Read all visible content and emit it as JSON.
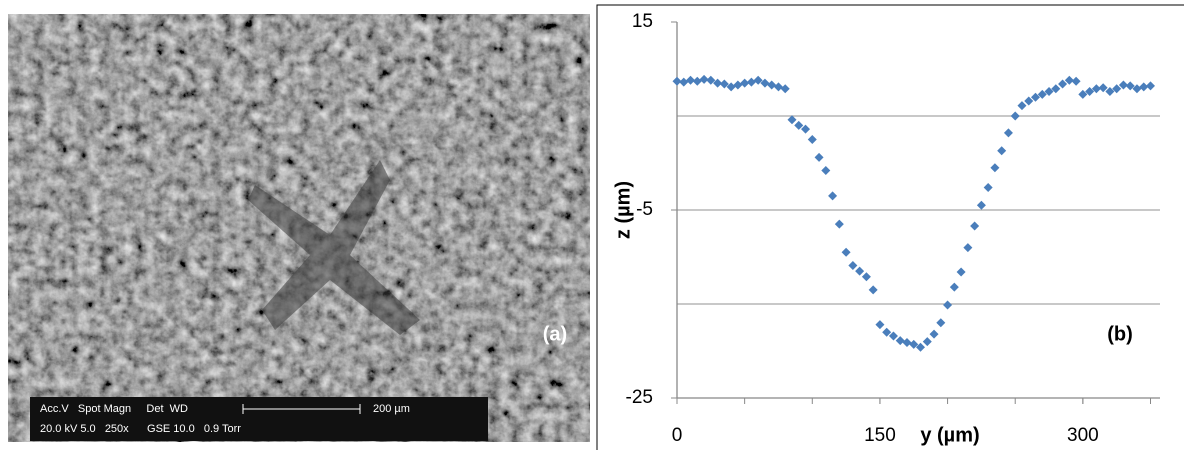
{
  "image": {
    "label": "(a)",
    "info_line1": "Acc.V   Spot Magn     Det  WD",
    "info_line2": "20.0 kV 5.0   250x      GSE 10.0   0.9 Torr",
    "scale_label": "200 µm"
  },
  "chart_data": {
    "type": "scatter",
    "label": "(b)",
    "x_label": "y (µm)",
    "y_label": "z (µm)",
    "xlim": [
      0,
      350
    ],
    "xticks": [
      0,
      150,
      300
    ],
    "xminor_step": 50,
    "ylim": [
      -25,
      15
    ],
    "yticks": [
      -25,
      -5,
      15
    ],
    "grid_lines": [
      -15,
      -5,
      5
    ],
    "color": "#4a7ebb",
    "x": [
      0,
      5,
      10,
      15,
      20,
      25,
      30,
      35,
      40,
      45,
      50,
      55,
      60,
      65,
      70,
      75,
      80,
      85,
      90,
      95,
      100,
      105,
      110,
      115,
      120,
      125,
      130,
      135,
      140,
      145,
      150,
      155,
      160,
      165,
      170,
      175,
      180,
      185,
      190,
      195,
      200,
      205,
      210,
      215,
      220,
      225,
      230,
      235,
      240,
      245,
      250,
      255,
      260,
      265,
      270,
      275,
      280,
      285,
      290,
      295,
      300,
      305,
      310,
      315,
      320,
      325,
      330,
      335,
      340,
      345,
      350
    ],
    "values": [
      8.7,
      8.6,
      8.8,
      8.7,
      8.9,
      8.8,
      8.5,
      8.4,
      8.1,
      8.3,
      8.5,
      8.6,
      8.8,
      8.5,
      8.3,
      8.1,
      7.9,
      4.6,
      4.0,
      3.6,
      2.5,
      0.6,
      -0.8,
      -3.5,
      -6.5,
      -9.5,
      -10.9,
      -11.5,
      -12.1,
      -13.5,
      -17.2,
      -18.0,
      -18.4,
      -18.9,
      -19.1,
      -19.3,
      -19.6,
      -19.0,
      -18.2,
      -17.0,
      -15.1,
      -13.2,
      -11.6,
      -9.0,
      -6.7,
      -4.5,
      -2.6,
      -0.5,
      1.3,
      3.2,
      5.0,
      6.1,
      6.6,
      7.0,
      7.3,
      7.6,
      7.9,
      8.4,
      8.8,
      8.7,
      7.3,
      7.6,
      7.9,
      8.0,
      7.6,
      7.9,
      8.3,
      8.2,
      7.9,
      8.1,
      8.2
    ]
  }
}
